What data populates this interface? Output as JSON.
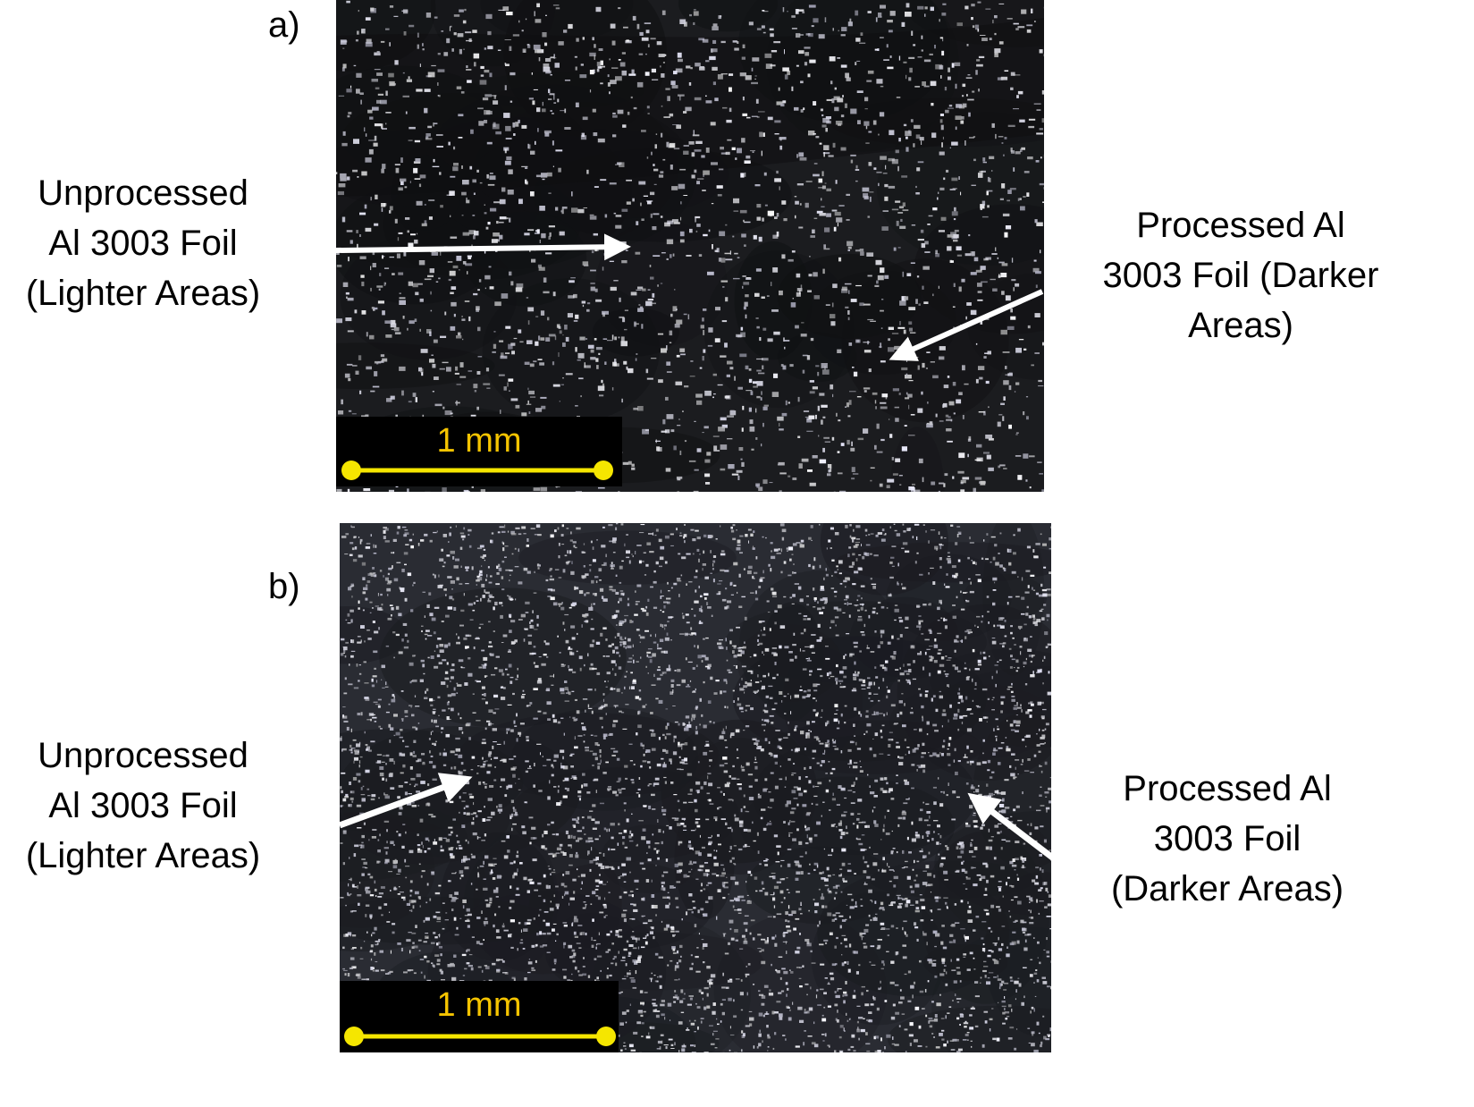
{
  "panel_a": {
    "letter": "a)",
    "left_label": [
      "Unprocessed",
      "Al 3003 Foil",
      "(Lighter Areas)"
    ],
    "right_label": [
      "Processed  Al",
      "3003 Foil (Darker",
      "Areas)"
    ],
    "scale_text": "1 mm"
  },
  "panel_b": {
    "letter": "b)",
    "left_label": [
      "Unprocessed",
      "Al 3003 Foil",
      "(Lighter Areas)"
    ],
    "right_label": [
      "Processed  Al",
      "3003 Foil",
      "(Darker Areas)"
    ],
    "scale_text": "1 mm"
  },
  "colors": {
    "scale_bar": "#f5e600",
    "scale_text": "#f5c400",
    "arrow": "#ffffff",
    "micrograph_bg": "#1b1c1f"
  }
}
